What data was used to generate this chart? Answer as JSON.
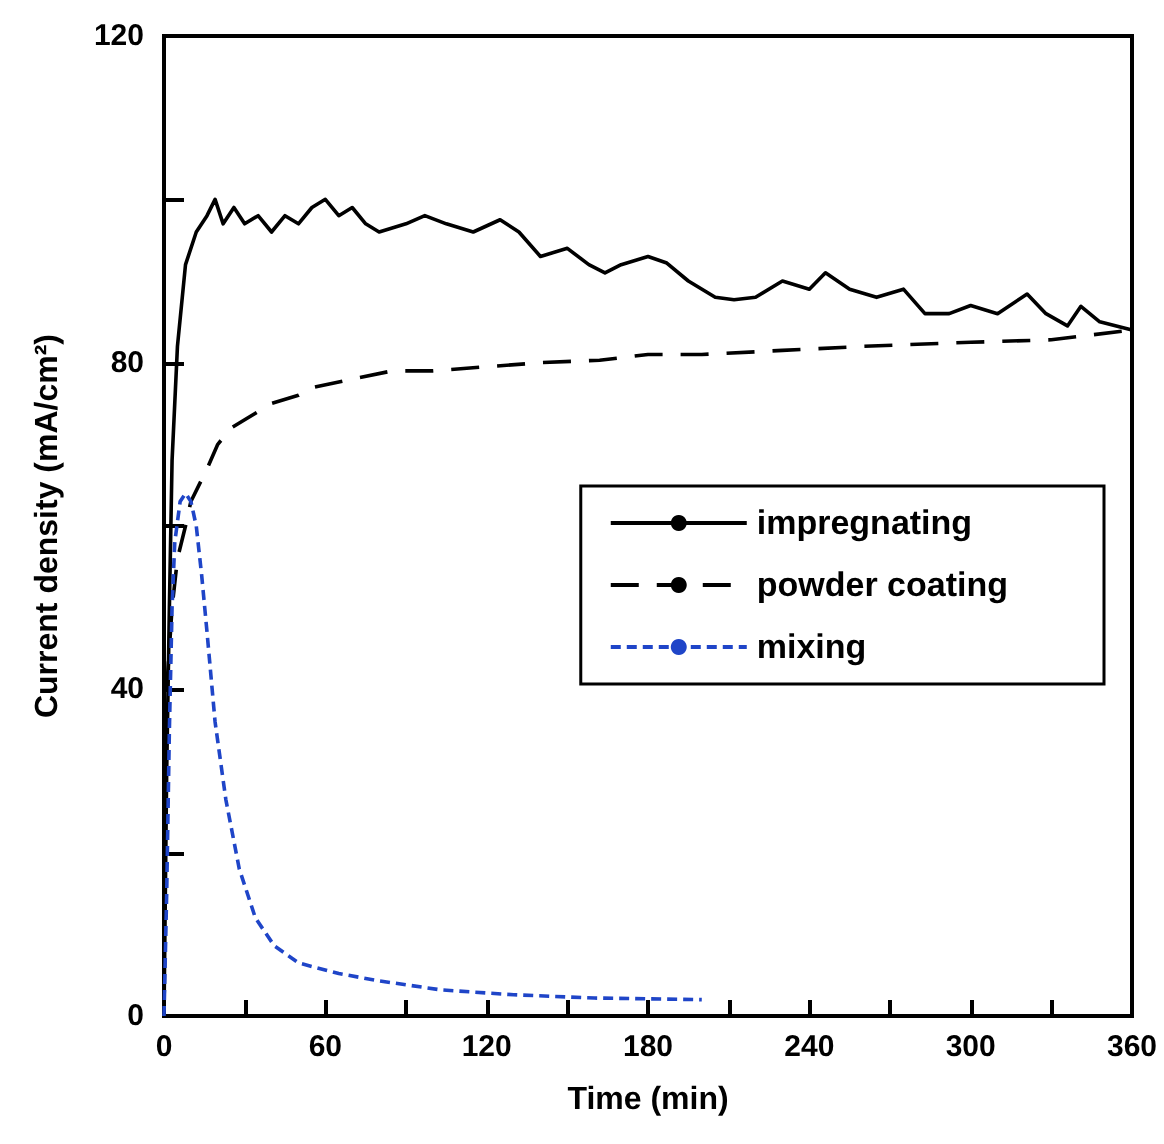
{
  "chart_data": {
    "type": "line",
    "xlabel": "Time (min)",
    "ylabel": "Current density (mA/cm²)",
    "xlim": [
      0,
      360
    ],
    "ylim": [
      0,
      120
    ],
    "xticks": [
      0,
      {
        "value": 30,
        "label": null
      },
      60,
      {
        "value": 90,
        "label": null
      },
      120,
      {
        "value": 150,
        "label": null
      },
      180,
      {
        "value": 210,
        "label": null
      },
      240,
      {
        "value": 270,
        "label": null
      },
      300,
      {
        "value": 330,
        "label": null
      },
      360
    ],
    "yticks": [
      0,
      {
        "value": 20,
        "label": null
      },
      40,
      {
        "value": 60,
        "label": null
      },
      80,
      {
        "value": 100,
        "label": null
      },
      120
    ],
    "grid": false,
    "legend": "right",
    "marker": "none",
    "series": [
      {
        "name": "impregnating",
        "color": "#000000",
        "line_style": "solid",
        "x": [
          0,
          1,
          2,
          3,
          5,
          8,
          12,
          16,
          19,
          22,
          26,
          30,
          35,
          40,
          45,
          50,
          55,
          60,
          65,
          70,
          75,
          80,
          90,
          97,
          105,
          115,
          125,
          132,
          140,
          150,
          158,
          164,
          170,
          180,
          187,
          195,
          205,
          212,
          220,
          230,
          240,
          246,
          255,
          265,
          275,
          283,
          292,
          300,
          310,
          321,
          328,
          336,
          341,
          348,
          360
        ],
        "values": [
          0,
          30,
          50,
          68,
          82,
          92,
          96,
          98,
          100,
          97,
          99,
          97,
          98,
          96,
          98,
          97,
          99,
          100,
          98,
          99,
          97,
          96,
          97,
          98,
          97,
          96,
          97.5,
          96,
          93,
          94,
          92,
          91,
          92,
          93,
          92.2,
          90,
          88,
          87.7,
          88,
          90,
          89,
          91,
          89,
          88,
          89,
          86,
          86,
          87,
          86,
          88.4,
          86,
          84.5,
          86.9,
          85,
          84
        ]
      },
      {
        "name": "powder coating",
        "color": "#000000",
        "line_style": "dashed",
        "x": [
          1,
          2,
          3,
          5,
          8,
          10,
          13,
          16,
          20,
          25,
          30,
          40,
          50,
          56,
          70,
          85,
          100,
          120,
          140,
          162,
          180,
          200,
          230,
          260,
          300,
          330,
          360
        ],
        "values": [
          40,
          45,
          50,
          56,
          60,
          63,
          65,
          67,
          70,
          72,
          73,
          75,
          76,
          77,
          78,
          79,
          79,
          79.5,
          80,
          80.3,
          81,
          81,
          81.5,
          82,
          82.5,
          82.8,
          84
        ]
      },
      {
        "name": "mixing",
        "color": "#1f45c8",
        "line_style": "dotted",
        "x": [
          0,
          1,
          2,
          3,
          4,
          6,
          8,
          10,
          12,
          14,
          16,
          19,
          23,
          28,
          34,
          41,
          50,
          65,
          80,
          103,
          130,
          160,
          200
        ],
        "values": [
          0,
          15,
          35,
          50,
          58,
          63,
          64,
          63,
          60,
          54,
          47,
          36,
          26.5,
          18,
          12,
          8.6,
          6.5,
          5.2,
          4.3,
          3.2,
          2.6,
          2.2,
          2
        ]
      }
    ]
  }
}
